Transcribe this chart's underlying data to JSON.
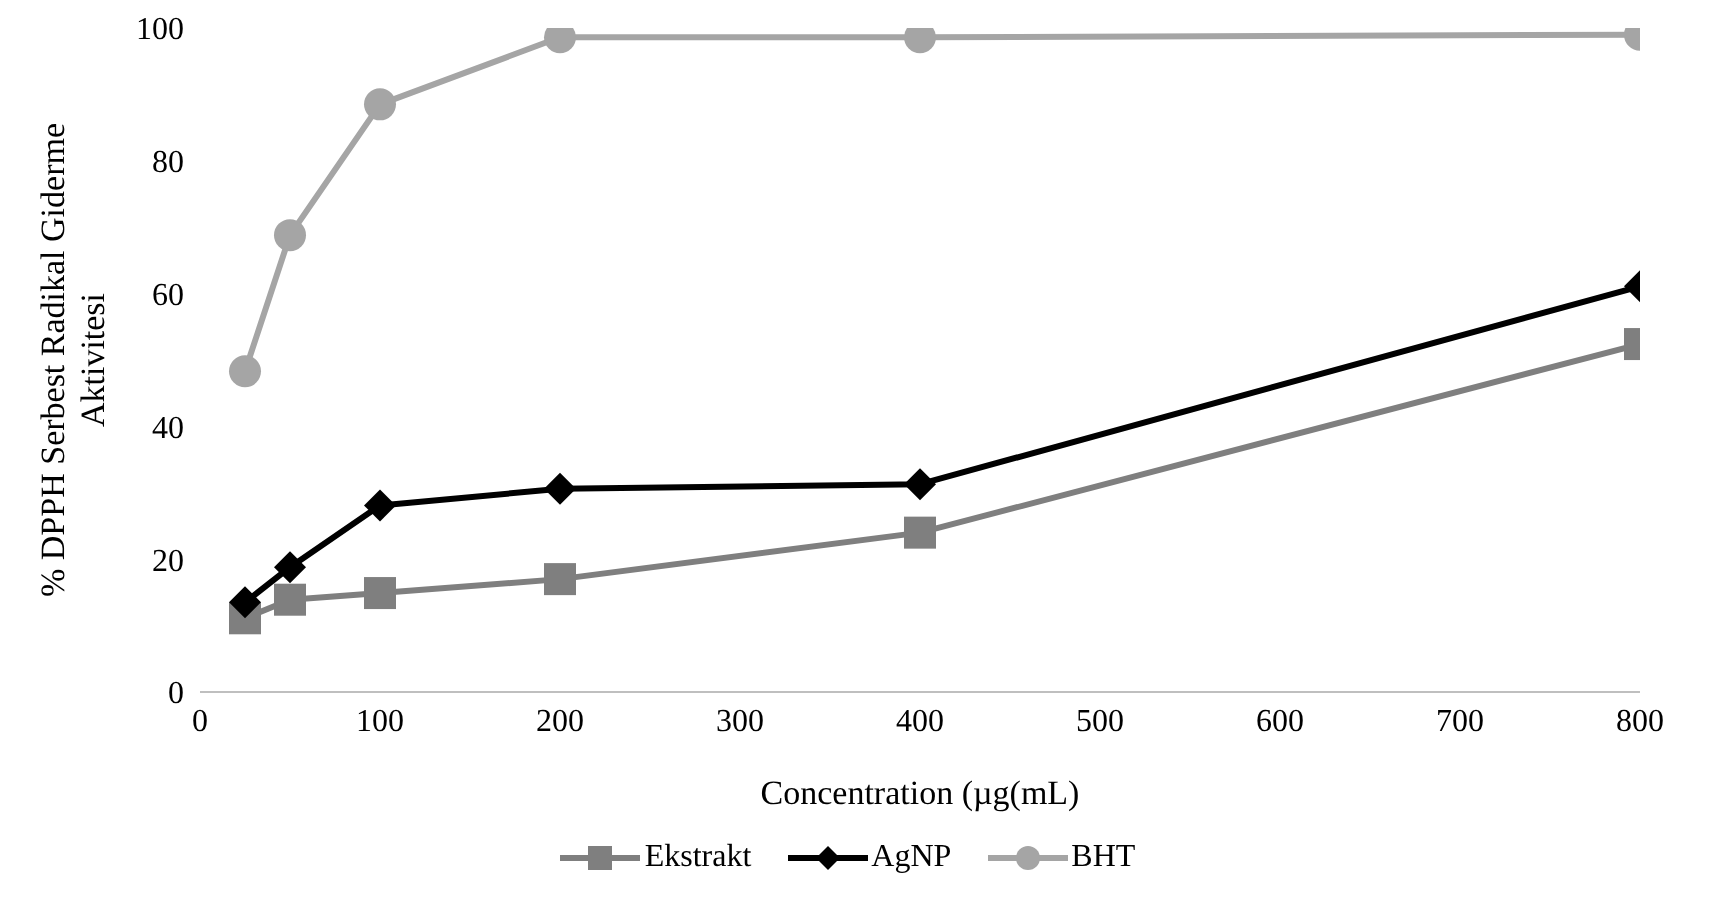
{
  "chart_data": {
    "type": "line",
    "xlabel": "Concentration (µg(mL)",
    "ylabel": "% DPPH Serbest Radikal Giderme\nAktivitesi",
    "x": [
      25,
      50,
      100,
      200,
      400,
      800
    ],
    "series": [
      {
        "name": "Ekstrakt",
        "color": "#7f7f7f",
        "marker": "square",
        "values": [
          11.1,
          13.9,
          14.9,
          17,
          24,
          52.4
        ]
      },
      {
        "name": "AgNP",
        "color": "#000000",
        "marker": "diamond",
        "values": [
          13.5,
          18.8,
          28.1,
          30.6,
          31.3,
          61.1
        ]
      },
      {
        "name": "BHT",
        "color": "#a5a5a5",
        "marker": "circle",
        "values": [
          48.3,
          68.8,
          88.5,
          98.6,
          98.6,
          99
        ]
      }
    ],
    "xlim": [
      0,
      800
    ],
    "xticks": [
      0,
      100,
      200,
      300,
      400,
      500,
      600,
      700,
      800
    ],
    "ylim": [
      0,
      100
    ],
    "yticks": [
      0,
      20,
      40,
      60,
      80,
      100
    ],
    "grid": false,
    "legend": "bottom",
    "line_style": "solid"
  }
}
